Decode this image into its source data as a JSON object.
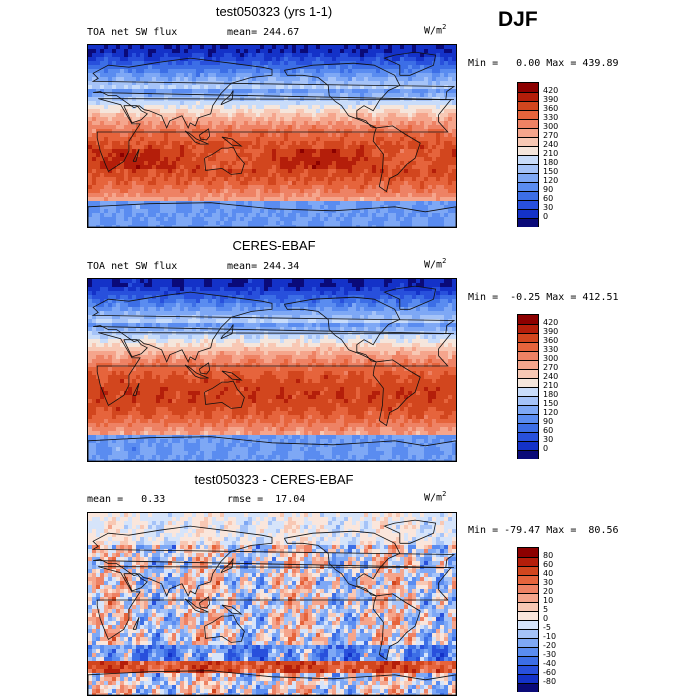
{
  "season": "DJF",
  "panels": [
    {
      "title": "test050323 (yrs 1-1)",
      "left_label": "TOA net SW flux",
      "mid_label": "mean= 244.67",
      "units_base": "W/m",
      "units_exp": "2",
      "minmax": "Min =   0.00 Max = 439.89"
    },
    {
      "title": "CERES-EBAF",
      "left_label": "TOA net SW flux",
      "mid_label": "mean= 244.34",
      "units_base": "W/m",
      "units_exp": "2",
      "minmax": "Min =  -0.25 Max = 412.51"
    },
    {
      "title": "test050323 - CERES-EBAF",
      "left_label": "mean =   0.33",
      "mid_label": "rmse =  17.04",
      "units_base": "W/m",
      "units_exp": "2",
      "minmax": "Min = -79.47 Max =  80.56"
    }
  ],
  "chart_data": [
    {
      "type": "heatmap",
      "title": "test050323 (yrs 1-1)",
      "variable": "TOA net SW flux",
      "mean": 244.67,
      "min": 0.0,
      "max": 439.89,
      "units": "W/m2",
      "colorbar_levels": [
        0,
        30,
        60,
        90,
        120,
        150,
        180,
        210,
        240,
        270,
        300,
        330,
        360,
        390,
        420
      ],
      "colorbar_colors": [
        "#0a0a78",
        "#1432c8",
        "#2850dc",
        "#3c6ee6",
        "#5a8cf0",
        "#7ea8f5",
        "#a5c3f8",
        "#c8dcfa",
        "#f5e6dc",
        "#f8c8b4",
        "#f5a58c",
        "#ee8264",
        "#e6643c",
        "#d2461e",
        "#b41e0a",
        "#8c0000"
      ]
    },
    {
      "type": "heatmap",
      "title": "CERES-EBAF",
      "variable": "TOA net SW flux",
      "mean": 244.34,
      "min": -0.25,
      "max": 412.51,
      "units": "W/m2",
      "colorbar_levels": [
        0,
        30,
        60,
        90,
        120,
        150,
        180,
        210,
        240,
        270,
        300,
        330,
        360,
        390,
        420
      ],
      "colorbar_colors": [
        "#0a0a78",
        "#1432c8",
        "#2850dc",
        "#3c6ee6",
        "#5a8cf0",
        "#7ea8f5",
        "#a5c3f8",
        "#c8dcfa",
        "#f5e6dc",
        "#f8c8b4",
        "#f5a58c",
        "#ee8264",
        "#e6643c",
        "#d2461e",
        "#b41e0a",
        "#8c0000"
      ]
    },
    {
      "type": "heatmap",
      "title": "test050323 - CERES-EBAF",
      "mean": 0.33,
      "rmse": 17.04,
      "min": -79.47,
      "max": 80.56,
      "units": "W/m2",
      "colorbar_levels": [
        -80,
        -60,
        -40,
        -30,
        -20,
        -10,
        -5,
        0,
        5,
        10,
        20,
        30,
        40,
        60,
        80
      ],
      "colorbar_colors": [
        "#0a0a78",
        "#1432c8",
        "#2850dc",
        "#3c6ee6",
        "#5a8cf0",
        "#7ea8f5",
        "#a5c3f8",
        "#d6e4fa",
        "#fae6dc",
        "#f8c8b4",
        "#f5a58c",
        "#ee8264",
        "#e6643c",
        "#d2461e",
        "#b41e0a",
        "#8c0000"
      ]
    }
  ]
}
